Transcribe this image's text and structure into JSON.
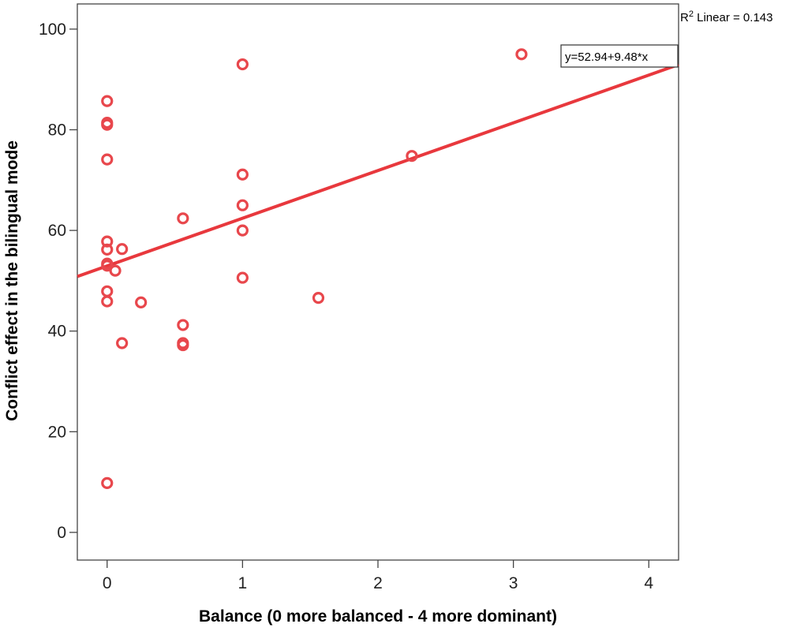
{
  "chart_data": {
    "type": "scatter",
    "xlabel": "Balance (0 more balanced - 4 more dominant)",
    "ylabel": "Conflict effect in the bilingual mode",
    "xlim": [
      -0.22,
      4.22
    ],
    "ylim": [
      -5.5,
      105
    ],
    "x_ticks": [
      0,
      1,
      2,
      3,
      4
    ],
    "y_ticks": [
      0,
      20,
      40,
      60,
      80,
      100
    ],
    "x_tick_labels": [
      "0",
      "1",
      "2",
      "3",
      "4"
    ],
    "y_tick_labels": [
      "0",
      "20",
      "40",
      "60",
      "80",
      "100"
    ],
    "grid": false,
    "marker_color": "#e8474c",
    "line_color": "#e8383d",
    "series": [
      {
        "points": [
          {
            "x": 0,
            "y": 85.7
          },
          {
            "x": 0,
            "y": 81.4
          },
          {
            "x": 0,
            "y": 81.0
          },
          {
            "x": 0,
            "y": 74.1
          },
          {
            "x": 0,
            "y": 57.8
          },
          {
            "x": 0,
            "y": 56.2
          },
          {
            "x": 0,
            "y": 53.4
          },
          {
            "x": 0,
            "y": 53.0
          },
          {
            "x": 0,
            "y": 47.9
          },
          {
            "x": 0,
            "y": 45.9
          },
          {
            "x": 0,
            "y": 9.8
          },
          {
            "x": 0.06,
            "y": 52.0
          },
          {
            "x": 0.11,
            "y": 56.3
          },
          {
            "x": 0.11,
            "y": 37.6
          },
          {
            "x": 0.25,
            "y": 45.7
          },
          {
            "x": 0.56,
            "y": 62.4
          },
          {
            "x": 0.56,
            "y": 41.2
          },
          {
            "x": 0.56,
            "y": 37.6
          },
          {
            "x": 0.56,
            "y": 37.2
          },
          {
            "x": 1.0,
            "y": 93.0
          },
          {
            "x": 1.0,
            "y": 71.1
          },
          {
            "x": 1.0,
            "y": 65.0
          },
          {
            "x": 1.0,
            "y": 60.0
          },
          {
            "x": 1.0,
            "y": 50.6
          },
          {
            "x": 1.56,
            "y": 46.6
          },
          {
            "x": 2.25,
            "y": 74.8
          },
          {
            "x": 3.06,
            "y": 95.0
          }
        ]
      }
    ],
    "fit_line": {
      "intercept": 52.94,
      "slope": 9.48,
      "equation_label": "y=52.94+9.48*x"
    },
    "r2_label": {
      "prefix": "R",
      "superscript": "2",
      "suffix": " Linear = 0.143"
    }
  }
}
